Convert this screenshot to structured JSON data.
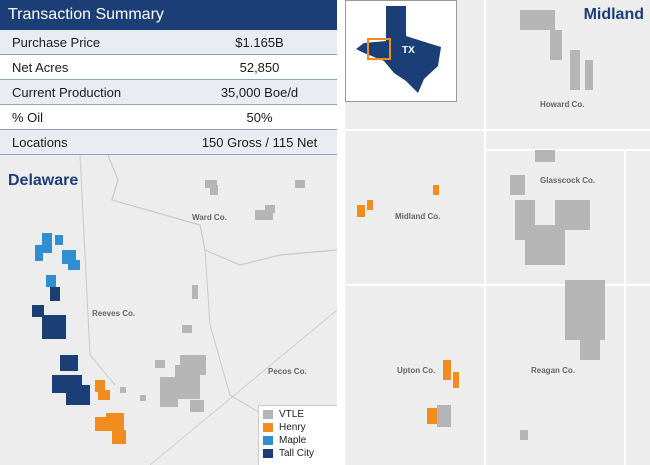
{
  "summary": {
    "title": "Transaction Summary",
    "rows": [
      {
        "label": "Purchase Price",
        "value": "$1.165B"
      },
      {
        "label": "Net Acres",
        "value": "52,850"
      },
      {
        "label": "Current Production",
        "value": "35,000 Boe/d"
      },
      {
        "label": "% Oil",
        "value": "50%"
      },
      {
        "label": "Locations",
        "value": "150 Gross / 115 Net"
      }
    ]
  },
  "delaware": {
    "title": "Delaware",
    "counties": [
      "Ward Co.",
      "Reeves Co.",
      "Pecos Co."
    ]
  },
  "midland": {
    "title": "Midland",
    "counties": [
      "Howard Co.",
      "Glasscock Co.",
      "Midland Co.",
      "Upton Co.",
      "Reagan Co."
    ],
    "inset_label": "TX"
  },
  "legend": {
    "items": [
      {
        "label": "VTLE",
        "color": "#b5b5b5"
      },
      {
        "label": "Henry",
        "color": "#f28c1f"
      },
      {
        "label": "Maple",
        "color": "#2f8fd0"
      },
      {
        "label": "Tall City",
        "color": "#1c3e76"
      }
    ]
  },
  "colors": {
    "header": "#1c3e76",
    "vtle": "#b5b5b5",
    "henry": "#f28c1f",
    "maple": "#2f8fd0",
    "tallcity": "#1c3e76"
  }
}
